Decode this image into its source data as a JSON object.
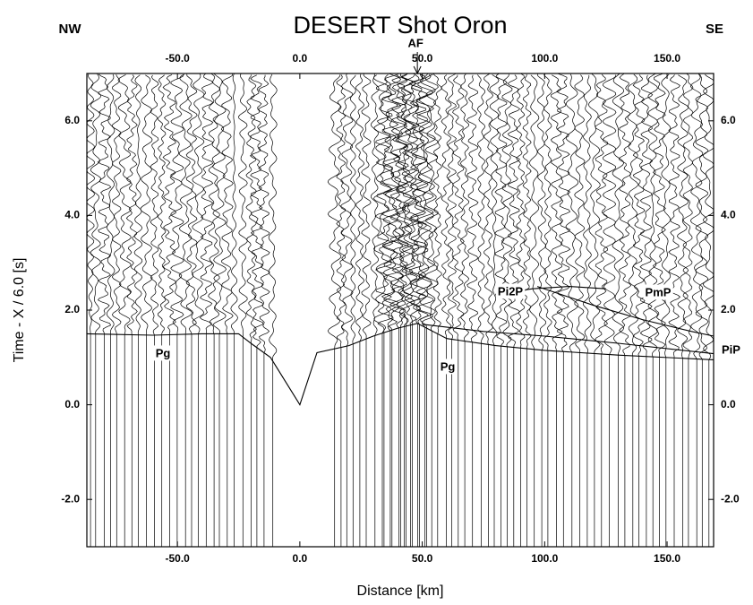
{
  "chart_data": {
    "type": "record-section",
    "title": "DESERT   Shot Oron",
    "left_label": "NW",
    "right_label": "SE",
    "annotation": "AF",
    "annotation_x": 48,
    "xlabel": "Distance [km]",
    "ylabel": "Time - X / 6.0 [s]",
    "xlim": [
      -87,
      169
    ],
    "ylim": [
      -3,
      7
    ],
    "xticks": [
      {
        "value": -50,
        "label": "-50.0"
      },
      {
        "value": 0,
        "label": "0.0"
      },
      {
        "value": 50,
        "label": "50.0"
      },
      {
        "value": 100,
        "label": "100.0"
      },
      {
        "value": 150,
        "label": "150.0"
      }
    ],
    "yticks": [
      {
        "value": -2,
        "label": "-2.0"
      },
      {
        "value": 0,
        "label": "0.0"
      },
      {
        "value": 2,
        "label": "2.0"
      },
      {
        "value": 4,
        "label": "4.0"
      },
      {
        "value": 6,
        "label": "6.0"
      }
    ],
    "series": [
      {
        "name": "Pg",
        "color": "#000000",
        "x": [
          -87,
          -60,
          -40,
          -25,
          -20,
          -12,
          0,
          7,
          20,
          30,
          40,
          48,
          60,
          80,
          100,
          130,
          169
        ],
        "values": [
          1.5,
          1.47,
          1.5,
          1.5,
          1.3,
          1.0,
          0,
          1.1,
          1.25,
          1.45,
          1.62,
          1.72,
          1.4,
          1.25,
          1.15,
          1.05,
          0.95
        ]
      },
      {
        "name": "Pi2P",
        "color": "#000000",
        "x": [
          82,
          95,
          110,
          125
        ],
        "values": [
          2.35,
          2.45,
          2.5,
          2.45
        ]
      },
      {
        "name": "PmP",
        "color": "#000000",
        "x": [
          97,
          120,
          140,
          160,
          169
        ],
        "values": [
          2.5,
          2.1,
          1.8,
          1.55,
          1.45
        ]
      },
      {
        "name": "PiP",
        "color": "#000000",
        "x": [
          50,
          75,
          100,
          130,
          169
        ],
        "values": [
          1.7,
          1.55,
          1.45,
          1.3,
          1.08
        ]
      }
    ]
  }
}
